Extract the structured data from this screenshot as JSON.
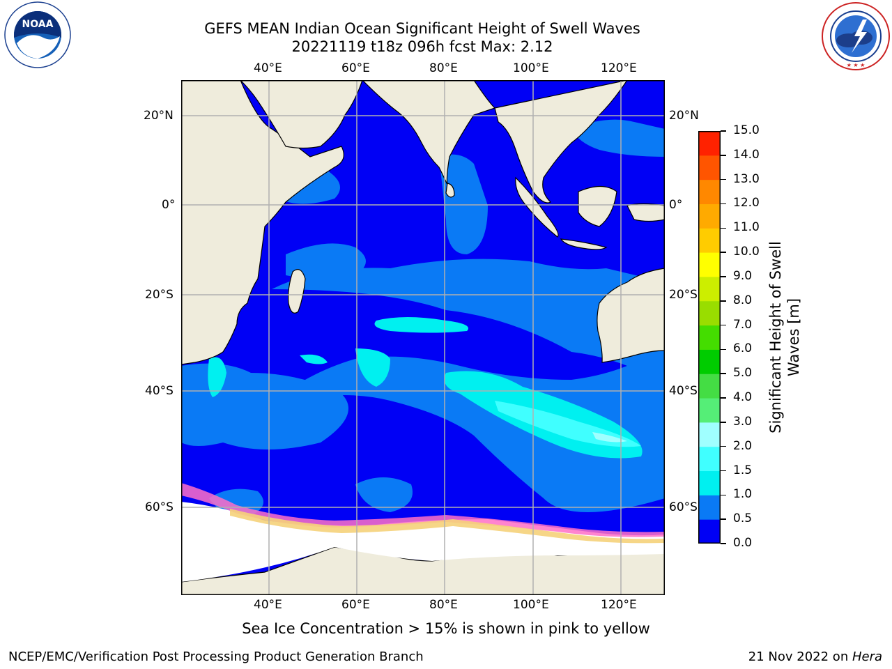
{
  "title": {
    "line1": "GEFS MEAN Indian Ocean Significant Height of Swell Waves",
    "line2": "20221119 t18z 096h fcst   Max: 2.12"
  },
  "logos": {
    "left": {
      "icon": "noaa-logo",
      "text": "NOAA",
      "ring_text": "NATIONAL OCEANIC AND ATMOSPHERIC ADMINISTRATION · U.S. DEPARTMENT OF COMMERCE"
    },
    "right": {
      "icon": "nws-logo",
      "ring_text": "NATIONAL WEATHER SERVICE"
    }
  },
  "map": {
    "lon_labels": [
      "40°E",
      "60°E",
      "80°E",
      "100°E",
      "120°E"
    ],
    "lat_labels": [
      "20°N",
      "0°",
      "20°S",
      "40°S",
      "60°S"
    ],
    "lon_range": [
      20,
      130
    ],
    "lat_range": [
      -75,
      27
    ]
  },
  "colorbar": {
    "label": "Significant Height of Swell Waves [m]",
    "label_line1": "Significant Height of Swell",
    "label_line2": "Waves [m]",
    "ticks": [
      "0.0",
      "0.5",
      "1.0",
      "1.5",
      "2.0",
      "3.0",
      "4.0",
      "5.0",
      "6.0",
      "7.0",
      "8.0",
      "9.0",
      "10.0",
      "11.0",
      "12.0",
      "13.0",
      "14.0",
      "15.0"
    ],
    "colors": [
      "#0000f5",
      "#0a7af5",
      "#00f0f0",
      "#40ffff",
      "#a0ffff",
      "#55ee77",
      "#44dd44",
      "#00cc00",
      "#44dd00",
      "#99dd00",
      "#ccee00",
      "#ffff00",
      "#ffcc00",
      "#ffaa00",
      "#ff8800",
      "#ff5500",
      "#ff2200"
    ]
  },
  "caption": "Sea Ice Concentration > 15% is shown in pink to yellow",
  "footer": {
    "left": "NCEP/EMC/Verification Post Processing Product Generation Branch",
    "date": "21 Nov 2022 on ",
    "machine": "Hera"
  }
}
